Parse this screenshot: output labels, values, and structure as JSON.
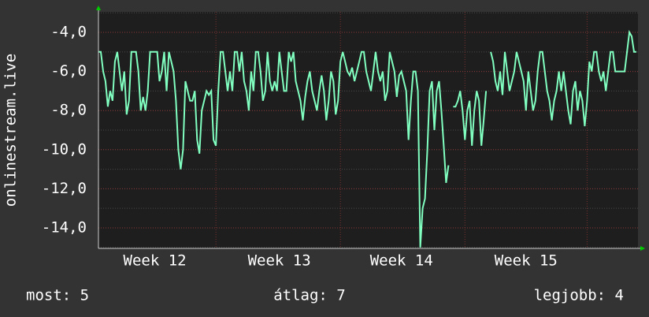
{
  "chart_data": {
    "type": "line",
    "y_label": "onlinestream.live",
    "categories": [
      null,
      null,
      null,
      null,
      null,
      null,
      null,
      null,
      null,
      null,
      null,
      null,
      null,
      null,
      null,
      null,
      null,
      null,
      null,
      null,
      null,
      null,
      null,
      null,
      "Week 12",
      null,
      null,
      null,
      null,
      null,
      null,
      null,
      null,
      null,
      null,
      null,
      null,
      null,
      null,
      null,
      null,
      null,
      null,
      null,
      null,
      null,
      null,
      null,
      null,
      null,
      null,
      null,
      null,
      null,
      null,
      null,
      null,
      null,
      null,
      null,
      null,
      null,
      null,
      null,
      null,
      null,
      null,
      null,
      null,
      null,
      null,
      null,
      null,
      null,
      null,
      null,
      null,
      "Week 13",
      null,
      null,
      null,
      null,
      null,
      null,
      null,
      null,
      null,
      null,
      null,
      null,
      null,
      null,
      null,
      null,
      null,
      null,
      null,
      null,
      null,
      null,
      null,
      null,
      null,
      null,
      null,
      null,
      null,
      null,
      null,
      null,
      null,
      null,
      null,
      null,
      null,
      null,
      null,
      null,
      null,
      null,
      null,
      null,
      null,
      null,
      null,
      null,
      null,
      null,
      null,
      "Week 14",
      null,
      null,
      null,
      null,
      null,
      null,
      null,
      null,
      null,
      null,
      null,
      null,
      null,
      null,
      null,
      null,
      null,
      null,
      null,
      null,
      null,
      null,
      null,
      null,
      null,
      null,
      null,
      null,
      null,
      null,
      null,
      null,
      null,
      null,
      null,
      null,
      null,
      null,
      null,
      null,
      null,
      null,
      null,
      null,
      null,
      null,
      null,
      null,
      null,
      null,
      null,
      null,
      "Week 15",
      null,
      null,
      null,
      null,
      null,
      null,
      null,
      null,
      null,
      null,
      null,
      null,
      null,
      null,
      null,
      null,
      null,
      null,
      null,
      null,
      null,
      null,
      null,
      null,
      null,
      null,
      null,
      null,
      null,
      null,
      null,
      null,
      null,
      null,
      null,
      null,
      null,
      null,
      null,
      null,
      null,
      null,
      null,
      null,
      null,
      null,
      null
    ],
    "series": [
      {
        "color": "#80ffc0",
        "values": [
          -5,
          -5,
          -6,
          -6.5,
          -7.8,
          -7,
          -7.5,
          -5.5,
          -5,
          -6,
          -7,
          -6,
          -8.2,
          -7.5,
          -5,
          -5,
          -5,
          -6,
          -8,
          -7.3,
          -8,
          -7,
          -5,
          -5,
          -5,
          -5,
          -6.5,
          -6,
          -5,
          -7,
          -5,
          -5.5,
          -6,
          -7.5,
          -10,
          -11,
          -10,
          -6.5,
          -7,
          -7.5,
          -7.5,
          -7,
          -9.5,
          -10.2,
          -8,
          -7.5,
          -7,
          -7.2,
          -7,
          -9.5,
          -9.8,
          -7,
          -5,
          -5,
          -6,
          -7,
          -6,
          -7,
          -5,
          -5,
          -6,
          -5,
          -6.5,
          -7,
          -8,
          -6,
          -7,
          -5,
          -5,
          -6,
          -7.5,
          -7,
          -5,
          -6.5,
          -7,
          -6.5,
          -7,
          -5,
          -6,
          -7,
          -7,
          -5,
          -5.5,
          -5,
          -6.5,
          -7,
          -7.5,
          -8.5,
          -7.3,
          -6.5,
          -6,
          -7,
          -7.5,
          -8,
          -7,
          -6.2,
          -7,
          -8.5,
          -7.5,
          -6,
          -6.5,
          -8.2,
          -7.5,
          -5.5,
          -5,
          -5.5,
          -6,
          -6.2,
          -5.8,
          -6.5,
          -6,
          -5.5,
          -5,
          -5,
          -6,
          -6.5,
          -7,
          -6,
          -5,
          -6,
          -6.5,
          -6,
          -7.5,
          -7,
          -5,
          -5.5,
          -6,
          -7.3,
          -6.2,
          -6,
          -6.5,
          -7,
          -9.5,
          -7.5,
          -6,
          -6,
          -7,
          -15,
          -13,
          -12.5,
          -10,
          -7,
          -6.5,
          -9,
          -7,
          -6.5,
          -8,
          -9.8,
          -11.7,
          -10.8,
          null,
          -7.8,
          -7.8,
          -7.5,
          -7,
          -8,
          -9.5,
          -8,
          -7.5,
          -9.8,
          -8,
          -7,
          -7.5,
          -9.8,
          -8.5,
          -7,
          null,
          -5,
          -5.5,
          -6.5,
          -7,
          -6,
          -7.2,
          -5,
          -6,
          -7,
          -6.5,
          -6,
          -5,
          -5.5,
          -6,
          -6.5,
          -8,
          -6,
          -7,
          -8,
          -7.5,
          -6,
          -5,
          -5,
          -6,
          -7,
          -7.5,
          -8.5,
          -7.5,
          -7,
          -6,
          -7,
          -6,
          -7,
          -8,
          -8.7,
          -7,
          -6.5,
          -8,
          -7,
          -7.5,
          -8.8,
          -7.5,
          -5.5,
          -6,
          -5,
          -5,
          -6,
          -6.5,
          -6,
          -7,
          -6,
          -5,
          -5,
          -6,
          -6,
          -6,
          -6,
          -6,
          -5,
          -4,
          -4.2,
          -5,
          -5
        ]
      }
    ],
    "ylim": [
      -15.05,
      -2.95
    ],
    "yticks": [
      {
        "value": -4,
        "label": "-4,0"
      },
      {
        "value": -6,
        "label": "-6,0"
      },
      {
        "value": -8,
        "label": "-8,0"
      },
      {
        "value": -10,
        "label": "-10,0"
      },
      {
        "value": -12,
        "label": "-12,0"
      },
      {
        "value": -14,
        "label": "-14,0"
      }
    ],
    "grid": true
  },
  "footer": {
    "current": "most: 5",
    "average": "átlag: 7",
    "best": "legjobb: 4"
  }
}
